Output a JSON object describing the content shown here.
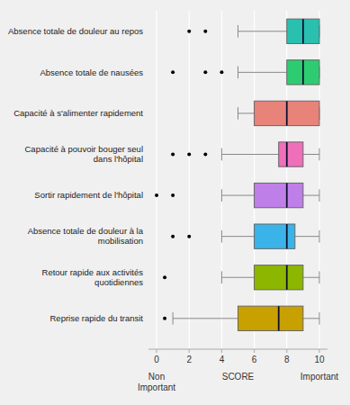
{
  "chart_data": {
    "type": "box",
    "orientation": "horizontal",
    "categories": [
      "Absence totale de douleur au repos",
      "Absence totale de nausées",
      "Capacité à s'alimenter rapidement",
      "Capacité à pouvoir bouger seul dans l'hôpital",
      "Sortir rapidement de l'hôpital",
      "Absence totale de douleur à la mobilisation",
      "Retour rapide aux activités quotidiennes",
      "Reprise rapide du transit"
    ],
    "boxes": [
      {
        "low": 5.0,
        "q1": 8.0,
        "median": 9.0,
        "q3": 10.0,
        "high": 10.0,
        "fliers": [
          2.0,
          3.0
        ]
      },
      {
        "low": 5.0,
        "q1": 8.0,
        "median": 9.0,
        "q3": 10.0,
        "high": 10.0,
        "fliers": [
          1.0,
          3.0,
          4.0
        ]
      },
      {
        "low": 5.0,
        "q1": 6.0,
        "median": 8.0,
        "q3": 10.0,
        "high": 10.0,
        "fliers": []
      },
      {
        "low": 4.0,
        "q1": 7.5,
        "median": 8.0,
        "q3": 9.0,
        "high": 10.0,
        "fliers": [
          1.0,
          2.0,
          3.0
        ]
      },
      {
        "low": 4.0,
        "q1": 6.0,
        "median": 8.0,
        "q3": 9.0,
        "high": 10.0,
        "fliers": [
          0.0,
          1.0
        ]
      },
      {
        "low": 4.0,
        "q1": 6.0,
        "median": 8.0,
        "q3": 8.5,
        "high": 10.0,
        "fliers": [
          1.0,
          2.0
        ]
      },
      {
        "low": 4.0,
        "q1": 6.0,
        "median": 8.0,
        "q3": 9.0,
        "high": 10.0,
        "fliers": [
          0.5
        ]
      },
      {
        "low": 1.0,
        "q1": 5.0,
        "median": 7.5,
        "q3": 9.0,
        "high": 10.0,
        "fliers": [
          0.5
        ]
      }
    ],
    "colors": [
      "#29c0b0",
      "#2ecc71",
      "#e8837a",
      "#f06fbb",
      "#bf7fe8",
      "#3ab4e8",
      "#8db600",
      "#c8a000"
    ],
    "xlim": [
      -0.5,
      10.5
    ],
    "xticks": [
      0,
      2,
      4,
      6,
      8,
      10
    ],
    "grid": true,
    "annotations": [
      {
        "text": "Non\nImportant",
        "x": 0
      },
      {
        "text": "SCORE",
        "x": 5
      },
      {
        "text": "Important",
        "x": 10
      }
    ]
  }
}
